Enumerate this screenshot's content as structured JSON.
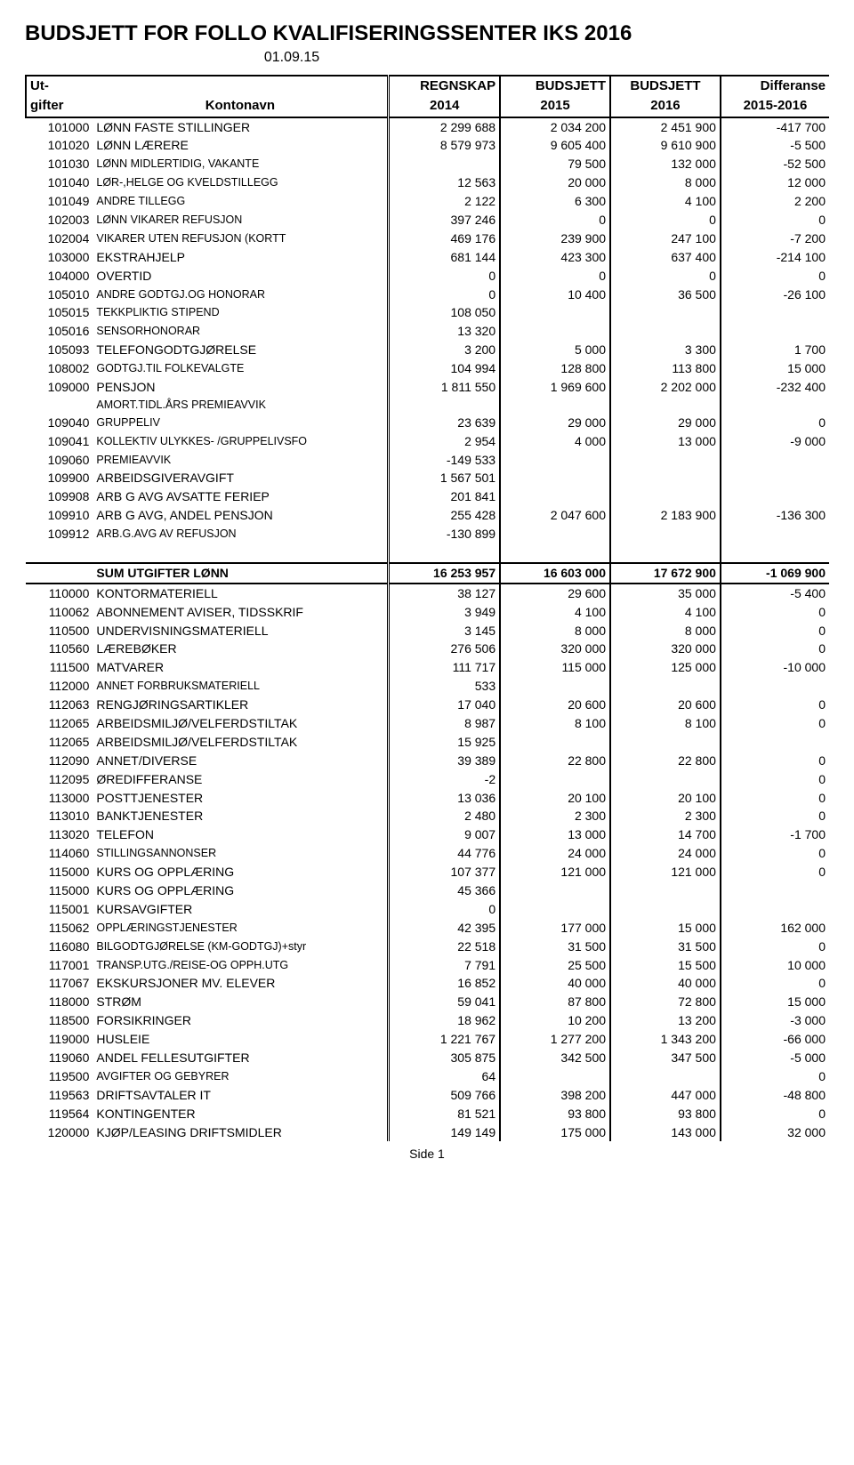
{
  "title": "BUDSJETT FOR FOLLO KVALIFISERINGSSENTER IKS 2016",
  "date": "01.09.15",
  "header": {
    "ut": "Ut-",
    "gifter": "gifter",
    "kontonavn": "Kontonavn",
    "regnskap": "REGNSKAP",
    "y2014": "2014",
    "budsjett": "BUDSJETT",
    "y2015": "2015",
    "budsjett2": "BUDSJETT",
    "y2016": "2016",
    "diff": "Differanse",
    "diffY": "2015-2016"
  },
  "rows1": [
    {
      "code": "101000",
      "name": "LØNN FASTE STILLINGER",
      "r": "2 299 688",
      "b15": "2 034 200",
      "b16": "2 451 900",
      "d": "-417 700"
    },
    {
      "code": "101020",
      "name": "LØNN LÆRERE",
      "r": "8 579 973",
      "b15": "9 605 400",
      "b16": "9 610 900",
      "d": "-5 500"
    },
    {
      "code": "101030",
      "name": "LØNN MIDLERTIDIG, VAKANTE",
      "r": "",
      "b15": "79 500",
      "b16": "132 000",
      "d": "-52 500",
      "small": true
    },
    {
      "code": "101040",
      "name": "LØR-,HELGE OG KVELDSTILLEGG",
      "r": "12 563",
      "b15": "20 000",
      "b16": "8 000",
      "d": "12 000",
      "small": true
    },
    {
      "code": "101049",
      "name": "ANDRE TILLEGG",
      "r": "2 122",
      "b15": "6 300",
      "b16": "4 100",
      "d": "2 200",
      "small": true
    },
    {
      "code": "102003",
      "name": "LØNN VIKARER REFUSJON",
      "r": "397 246",
      "b15": "0",
      "b16": "0",
      "d": "0",
      "small": true
    },
    {
      "code": "102004",
      "name": "VIKARER UTEN REFUSJON (KORTT",
      "r": "469 176",
      "b15": "239 900",
      "b16": "247 100",
      "d": "-7 200",
      "small": true
    },
    {
      "code": "103000",
      "name": "EKSTRAHJELP",
      "r": "681 144",
      "b15": "423 300",
      "b16": "637 400",
      "d": "-214 100"
    },
    {
      "code": "104000",
      "name": "OVERTID",
      "r": "0",
      "b15": "0",
      "b16": "0",
      "d": "0"
    },
    {
      "code": "105010",
      "name": "ANDRE GODTGJ.OG HONORAR",
      "r": "0",
      "b15": "10 400",
      "b16": "36 500",
      "d": "-26 100",
      "small": true
    },
    {
      "code": "105015",
      "name": "TEKKPLIKTIG STIPEND",
      "r": "108 050",
      "b15": "",
      "b16": "",
      "d": "",
      "small": true
    },
    {
      "code": "105016",
      "name": "SENSORHONORAR",
      "r": "13 320",
      "b15": "",
      "b16": "",
      "d": "",
      "small": true
    },
    {
      "code": "105093",
      "name": "TELEFONGODTGJØRELSE",
      "r": "3 200",
      "b15": "5 000",
      "b16": "3 300",
      "d": "1 700"
    },
    {
      "code": "108002",
      "name": "GODTGJ.TIL FOLKEVALGTE",
      "r": "104 994",
      "b15": "128 800",
      "b16": "113 800",
      "d": "15 000",
      "small": true
    },
    {
      "code": "109000",
      "name": "PENSJON",
      "r": "1 811 550",
      "b15": "1 969 600",
      "b16": "2 202 000",
      "d": "-232 400"
    },
    {
      "code": "",
      "name": "AMORT.TIDL.ÅRS PREMIEAVVIK",
      "r": "",
      "b15": "",
      "b16": "",
      "d": "",
      "small": true
    },
    {
      "code": "109040",
      "name": "GRUPPELIV",
      "r": "23 639",
      "b15": "29 000",
      "b16": "29 000",
      "d": "0",
      "small": true
    },
    {
      "code": "109041",
      "name": "KOLLEKTIV ULYKKES- /GRUPPELIVSFO",
      "r": "2 954",
      "b15": "4 000",
      "b16": "13 000",
      "d": "-9 000",
      "small": true
    },
    {
      "code": "109060",
      "name": "PREMIEAVVIK",
      "r": "-149 533",
      "b15": "",
      "b16": "",
      "d": "",
      "small": true
    },
    {
      "code": "109900",
      "name": "ARBEIDSGIVERAVGIFT",
      "r": "1 567 501",
      "b15": "",
      "b16": "",
      "d": ""
    },
    {
      "code": "109908",
      "name": "ARB G AVG AVSATTE FERIEP",
      "r": "201 841",
      "b15": "",
      "b16": "",
      "d": ""
    },
    {
      "code": "109910",
      "name": "ARB G AVG, ANDEL PENSJON",
      "r": "255 428",
      "b15": "2 047 600",
      "b16": "2 183 900",
      "d": "-136 300"
    },
    {
      "code": "109912",
      "name": "ARB.G.AVG AV REFUSJON",
      "r": "-130 899",
      "b15": "",
      "b16": "",
      "d": "",
      "small": true
    }
  ],
  "sum": {
    "label": "SUM UTGIFTER LØNN",
    "r": "16 253 957",
    "b15": "16 603 000",
    "b16": "17 672 900",
    "d": "-1 069 900"
  },
  "rows2": [
    {
      "code": "110000",
      "name": "KONTORMATERIELL",
      "r": "38 127",
      "b15": "29 600",
      "b16": "35 000",
      "d": "-5 400"
    },
    {
      "code": "110062",
      "name": "ABONNEMENT AVISER, TIDSSKRIF",
      "r": "3 949",
      "b15": "4 100",
      "b16": "4 100",
      "d": "0"
    },
    {
      "code": "110500",
      "name": "UNDERVISNINGSMATERIELL",
      "r": "3 145",
      "b15": "8 000",
      "b16": "8 000",
      "d": "0"
    },
    {
      "code": "110560",
      "name": "LÆREBØKER",
      "r": "276 506",
      "b15": "320 000",
      "b16": "320 000",
      "d": "0"
    },
    {
      "code": "111500",
      "name": "MATVARER",
      "r": "111 717",
      "b15": "115 000",
      "b16": "125 000",
      "d": "-10 000"
    },
    {
      "code": "112000",
      "name": "ANNET FORBRUKSMATERIELL",
      "r": "533",
      "b15": "",
      "b16": "",
      "d": "",
      "small": true
    },
    {
      "code": "112063",
      "name": "RENGJØRINGSARTIKLER",
      "r": "17 040",
      "b15": "20 600",
      "b16": "20 600",
      "d": "0"
    },
    {
      "code": "112065",
      "name": "ARBEIDSMILJØ/VELFERDSTILTAK",
      "r": "8 987",
      "b15": "8 100",
      "b16": "8 100",
      "d": "0"
    },
    {
      "code": "112065",
      "name": "ARBEIDSMILJØ/VELFERDSTILTAK",
      "r": "15 925",
      "b15": "",
      "b16": "",
      "d": ""
    },
    {
      "code": "112090",
      "name": "ANNET/DIVERSE",
      "r": "39 389",
      "b15": "22 800",
      "b16": "22 800",
      "d": "0"
    },
    {
      "code": "112095",
      "name": "ØREDIFFERANSE",
      "r": "-2",
      "b15": "",
      "b16": "",
      "d": "0"
    },
    {
      "code": "113000",
      "name": "POSTTJENESTER",
      "r": "13 036",
      "b15": "20 100",
      "b16": "20 100",
      "d": "0"
    },
    {
      "code": "113010",
      "name": "BANKTJENESTER",
      "r": "2 480",
      "b15": "2 300",
      "b16": "2 300",
      "d": "0"
    },
    {
      "code": "113020",
      "name": "TELEFON",
      "r": "9 007",
      "b15": "13 000",
      "b16": "14 700",
      "d": "-1 700"
    },
    {
      "code": "114060",
      "name": "STILLINGSANNONSER",
      "r": "44 776",
      "b15": "24 000",
      "b16": "24 000",
      "d": "0",
      "small": true
    },
    {
      "code": "115000",
      "name": "KURS OG OPPLÆRING",
      "r": "107 377",
      "b15": "121 000",
      "b16": "121 000",
      "d": "0"
    },
    {
      "code": "115000",
      "name": "KURS OG OPPLÆRING",
      "r": "45 366",
      "b15": "",
      "b16": "",
      "d": ""
    },
    {
      "code": "115001",
      "name": "KURSAVGIFTER",
      "r": "0",
      "b15": "",
      "b16": "",
      "d": ""
    },
    {
      "code": "115062",
      "name": "OPPLÆRINGSTJENESTER",
      "r": "42 395",
      "b15": "177 000",
      "b16": "15 000",
      "d": "162 000",
      "small": true
    },
    {
      "code": "116080",
      "name": "BILGODTGJØRELSE (KM-GODTGJ)+styr",
      "r": "22 518",
      "b15": "31 500",
      "b16": "31 500",
      "d": "0",
      "small": true
    },
    {
      "code": "117001",
      "name": "TRANSP.UTG./REISE-OG OPPH.UTG",
      "r": "7 791",
      "b15": "25 500",
      "b16": "15 500",
      "d": "10 000",
      "small": true
    },
    {
      "code": "117067",
      "name": "EKSKURSJONER MV. ELEVER",
      "r": "16 852",
      "b15": "40 000",
      "b16": "40 000",
      "d": "0"
    },
    {
      "code": "118000",
      "name": "STRØM",
      "r": "59 041",
      "b15": "87 800",
      "b16": "72 800",
      "d": "15 000"
    },
    {
      "code": "118500",
      "name": "FORSIKRINGER",
      "r": "18 962",
      "b15": "10 200",
      "b16": "13 200",
      "d": "-3 000"
    },
    {
      "code": "119000",
      "name": "HUSLEIE",
      "r": "1 221 767",
      "b15": "1 277 200",
      "b16": "1 343 200",
      "d": "-66 000"
    },
    {
      "code": "119060",
      "name": "ANDEL FELLESUTGIFTER",
      "r": "305 875",
      "b15": "342 500",
      "b16": "347 500",
      "d": "-5 000"
    },
    {
      "code": "119500",
      "name": "AVGIFTER OG GEBYRER",
      "r": "64",
      "b15": "",
      "b16": "",
      "d": "0",
      "small": true
    },
    {
      "code": "119563",
      "name": "DRIFTSAVTALER   IT",
      "r": "509 766",
      "b15": "398 200",
      "b16": "447 000",
      "d": "-48 800"
    },
    {
      "code": "119564",
      "name": "KONTINGENTER",
      "r": "81 521",
      "b15": "93 800",
      "b16": "93 800",
      "d": "0"
    },
    {
      "code": "120000",
      "name": "KJØP/LEASING DRIFTSMIDLER",
      "r": "149 149",
      "b15": "175 000",
      "b16": "143 000",
      "d": "32 000"
    }
  ],
  "footer": "Side 1"
}
